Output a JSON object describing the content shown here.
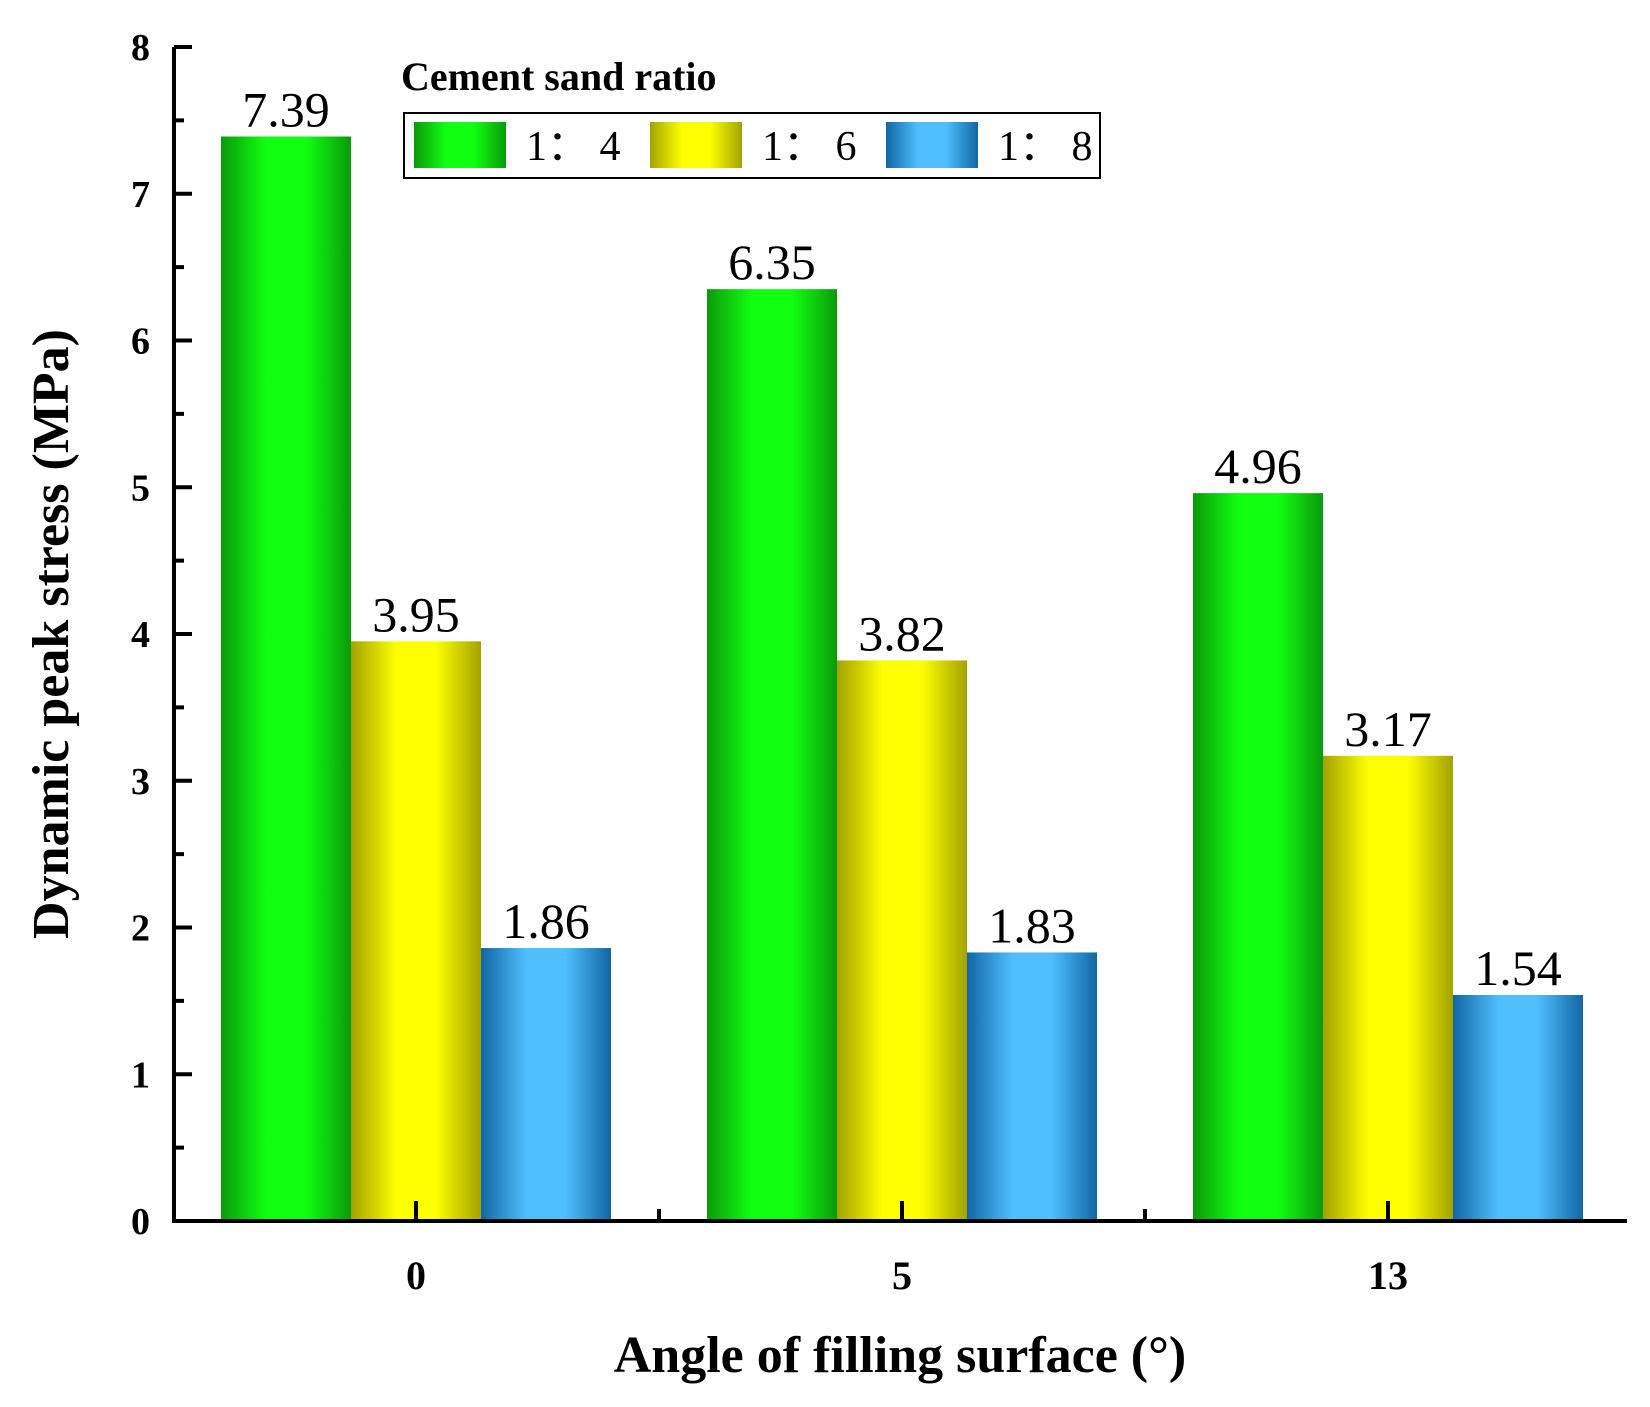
{
  "chart_data": {
    "type": "bar",
    "title": "",
    "xlabel": "Angle of filling surface (°)",
    "ylabel": "Dynamic peak stress (MPa)",
    "categories": [
      "0",
      "5",
      "13"
    ],
    "ylim": [
      0,
      8
    ],
    "yticks": [
      0,
      1,
      2,
      3,
      4,
      5,
      6,
      7,
      8
    ],
    "grid": false,
    "legend": {
      "title": "Cement sand ratio",
      "position": "top-center",
      "entries": [
        "1： 4",
        "1： 6",
        "1： 8"
      ]
    },
    "series": [
      {
        "name": "1： 4",
        "values": [
          7.39,
          6.35,
          4.96
        ],
        "labels": [
          "7.39",
          "6.35",
          "4.96"
        ],
        "color_light": "#11ff11",
        "color_dark": "#0a9a0a"
      },
      {
        "name": "1： 6",
        "values": [
          3.95,
          3.82,
          3.17
        ],
        "labels": [
          "3.95",
          "3.82",
          "3.17"
        ],
        "color_light": "#ffff00",
        "color_dark": "#a3a300"
      },
      {
        "name": "1： 8",
        "values": [
          1.86,
          1.83,
          1.54
        ],
        "labels": [
          "1.86",
          "1.83",
          "1.54"
        ],
        "color_light": "#4fbfff",
        "color_dark": "#1166a3"
      }
    ]
  }
}
